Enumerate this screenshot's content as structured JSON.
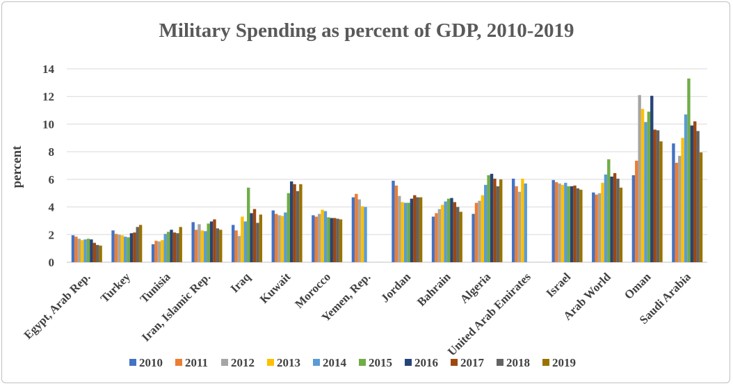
{
  "chart_data": {
    "type": "bar",
    "title": "Military Spending as percent of GDP, 2010-2019",
    "ylabel": "percent",
    "xlabel": "",
    "ylim": [
      0,
      14
    ],
    "yticks": [
      0,
      2,
      4,
      6,
      8,
      10,
      12,
      14
    ],
    "grid": true,
    "legend_position": "bottom",
    "categories": [
      "Egypt, Arab Rep.",
      "Turkey",
      "Tunisia",
      "Iran, Islamic Rep.",
      "Iraq",
      "Kuwait",
      "Morocco",
      "Yemen, Rep.",
      "Jordan",
      "Bahrain",
      "Algeria",
      "United Arab Emirates",
      "Israel",
      "Arab World",
      "Oman",
      "Saudi Arabia"
    ],
    "series": [
      {
        "name": "2010",
        "color": "#4472c4",
        "values": [
          1.95,
          2.3,
          1.3,
          2.9,
          2.7,
          3.75,
          3.4,
          4.7,
          5.9,
          3.3,
          3.5,
          6.05,
          5.95,
          5.05,
          6.3,
          8.6
        ]
      },
      {
        "name": "2011",
        "color": "#ed7d31",
        "values": [
          1.85,
          2.05,
          1.55,
          2.35,
          2.3,
          3.5,
          3.3,
          4.95,
          5.55,
          3.55,
          4.3,
          5.5,
          5.8,
          4.9,
          7.35,
          7.2
        ]
      },
      {
        "name": "2012",
        "color": "#a5a5a5",
        "values": [
          1.7,
          2.0,
          1.5,
          2.75,
          1.9,
          3.4,
          3.5,
          4.55,
          4.8,
          3.85,
          4.45,
          5.1,
          5.7,
          5.0,
          12.1,
          7.7
        ]
      },
      {
        "name": "2013",
        "color": "#ffc000",
        "values": [
          1.6,
          1.95,
          1.6,
          2.3,
          3.3,
          3.35,
          3.8,
          4.05,
          4.35,
          4.15,
          4.85,
          6.05,
          5.6,
          5.75,
          11.1,
          9.0
        ]
      },
      {
        "name": "2014",
        "color": "#5b9bd5",
        "values": [
          1.65,
          1.85,
          2.05,
          2.25,
          2.95,
          3.6,
          3.7,
          4.0,
          4.3,
          4.4,
          5.6,
          5.7,
          5.75,
          6.35,
          10.15,
          10.7
        ]
      },
      {
        "name": "2015",
        "color": "#70ad47",
        "values": [
          1.7,
          1.8,
          2.2,
          2.8,
          5.4,
          5.0,
          3.25,
          null,
          4.3,
          4.6,
          6.3,
          null,
          5.5,
          7.45,
          10.9,
          13.3
        ]
      },
      {
        "name": "2016",
        "color": "#264478",
        "values": [
          1.65,
          2.1,
          2.35,
          2.95,
          3.55,
          5.85,
          3.2,
          null,
          4.6,
          4.65,
          6.4,
          null,
          5.5,
          6.2,
          12.05,
          9.9
        ]
      },
      {
        "name": "2017",
        "color": "#9e480e",
        "values": [
          1.4,
          2.15,
          2.15,
          3.1,
          3.85,
          5.65,
          3.2,
          null,
          4.85,
          4.35,
          6.05,
          null,
          5.55,
          6.45,
          9.6,
          10.2
        ]
      },
      {
        "name": "2018",
        "color": "#636363",
        "values": [
          1.25,
          2.55,
          2.1,
          2.45,
          2.85,
          5.15,
          3.15,
          null,
          4.7,
          4.0,
          5.5,
          null,
          5.35,
          6.05,
          9.55,
          9.5
        ]
      },
      {
        "name": "2019",
        "color": "#997300",
        "values": [
          1.2,
          2.7,
          2.55,
          2.35,
          3.45,
          5.65,
          3.1,
          null,
          4.7,
          3.65,
          6.0,
          null,
          5.25,
          5.4,
          8.75,
          7.95
        ]
      }
    ]
  }
}
